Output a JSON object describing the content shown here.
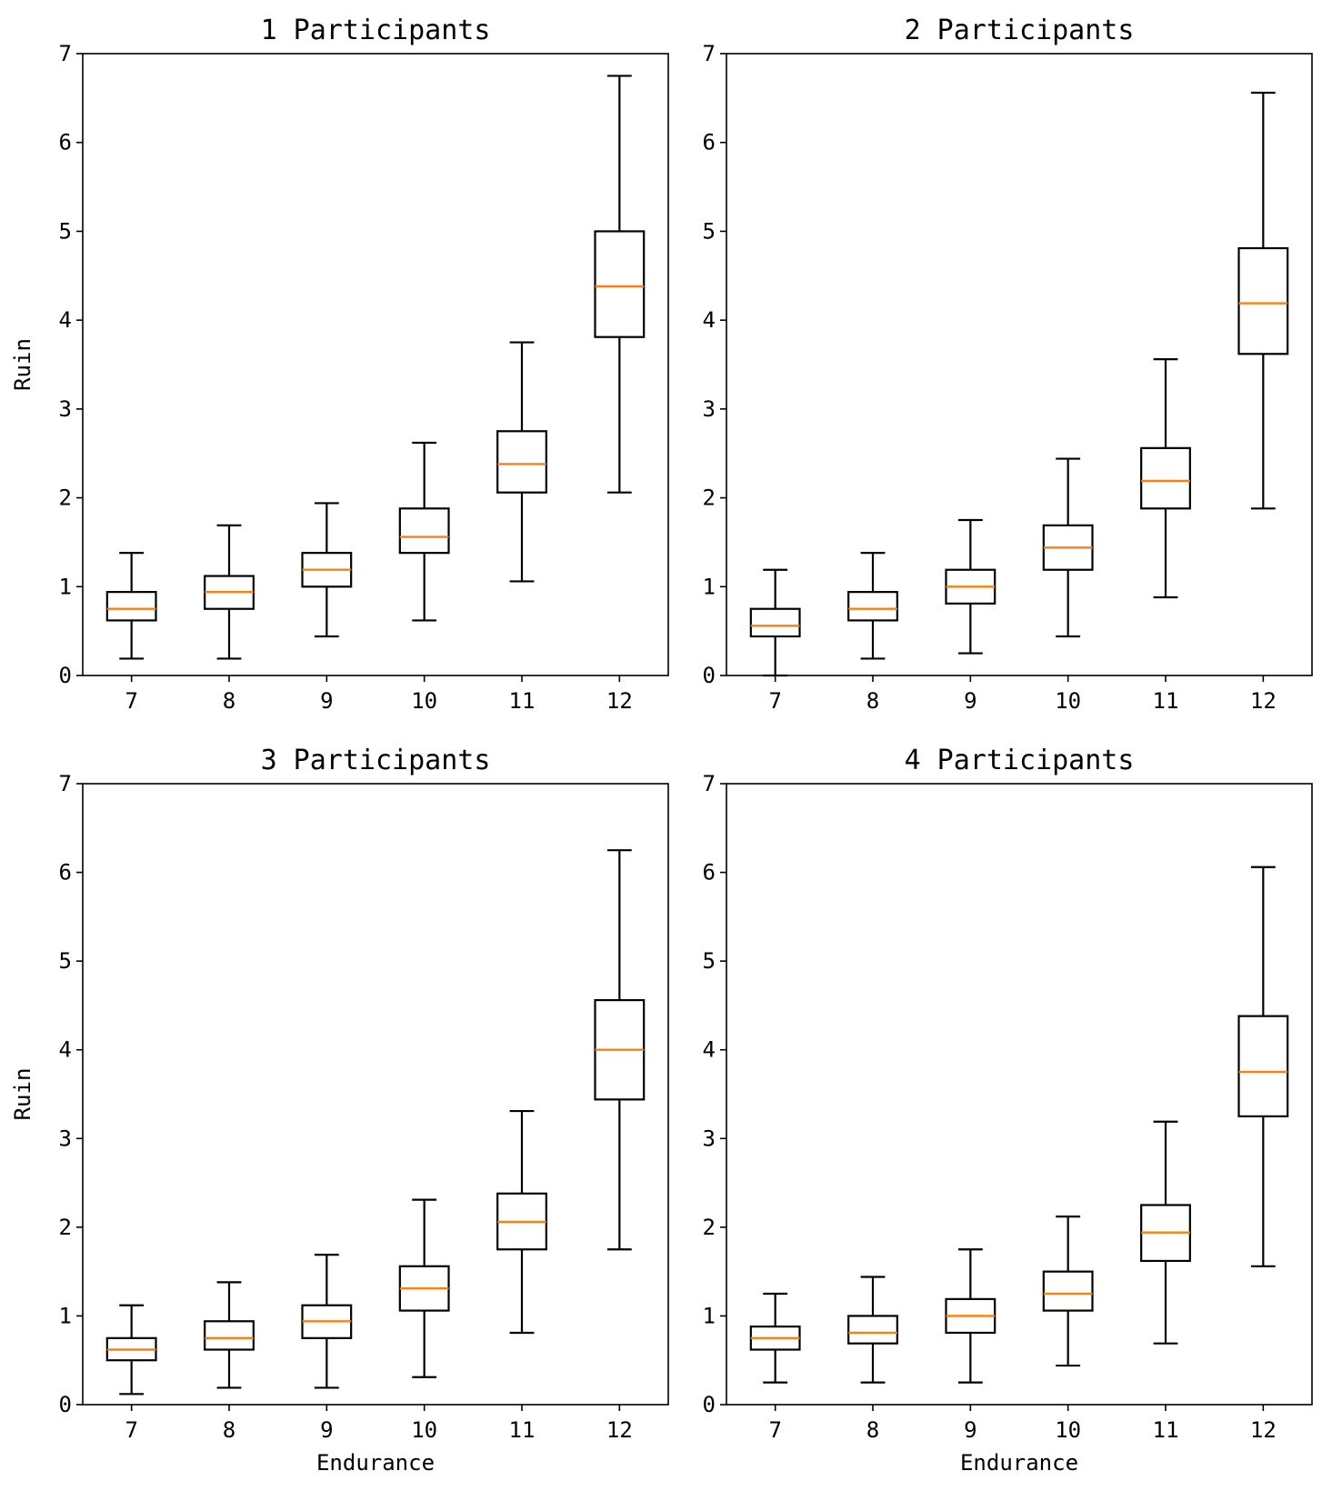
{
  "colors": {
    "box": "#000000",
    "median": "#ff7f0e",
    "background": "#ffffff"
  },
  "chart_data": [
    {
      "type": "box",
      "title": "1 Participants",
      "xlabel": "",
      "ylabel": "Ruin",
      "categories": [
        "7",
        "8",
        "9",
        "10",
        "11",
        "12"
      ],
      "ylim": [
        0,
        7
      ],
      "yticks": [
        "0",
        "1",
        "2",
        "3",
        "4",
        "5",
        "6",
        "7"
      ],
      "grid": false,
      "boxes": [
        {
          "whisker_low": 0.19,
          "q1": 0.62,
          "median": 0.75,
          "q3": 0.94,
          "whisker_high": 1.38
        },
        {
          "whisker_low": 0.19,
          "q1": 0.75,
          "median": 0.94,
          "q3": 1.12,
          "whisker_high": 1.69
        },
        {
          "whisker_low": 0.44,
          "q1": 1.0,
          "median": 1.19,
          "q3": 1.38,
          "whisker_high": 1.94
        },
        {
          "whisker_low": 0.62,
          "q1": 1.38,
          "median": 1.56,
          "q3": 1.88,
          "whisker_high": 2.62
        },
        {
          "whisker_low": 1.06,
          "q1": 2.06,
          "median": 2.38,
          "q3": 2.75,
          "whisker_high": 3.75
        },
        {
          "whisker_low": 2.06,
          "q1": 3.81,
          "median": 4.38,
          "q3": 5.0,
          "whisker_high": 6.75
        }
      ]
    },
    {
      "type": "box",
      "title": "2 Participants",
      "xlabel": "",
      "ylabel": "",
      "categories": [
        "7",
        "8",
        "9",
        "10",
        "11",
        "12"
      ],
      "ylim": [
        0,
        7
      ],
      "yticks": [
        "0",
        "1",
        "2",
        "3",
        "4",
        "5",
        "6",
        "7"
      ],
      "grid": false,
      "boxes": [
        {
          "whisker_low": 0.0,
          "q1": 0.44,
          "median": 0.56,
          "q3": 0.75,
          "whisker_high": 1.19
        },
        {
          "whisker_low": 0.19,
          "q1": 0.62,
          "median": 0.75,
          "q3": 0.94,
          "whisker_high": 1.38
        },
        {
          "whisker_low": 0.25,
          "q1": 0.81,
          "median": 1.0,
          "q3": 1.19,
          "whisker_high": 1.75
        },
        {
          "whisker_low": 0.44,
          "q1": 1.19,
          "median": 1.44,
          "q3": 1.69,
          "whisker_high": 2.44
        },
        {
          "whisker_low": 0.88,
          "q1": 1.88,
          "median": 2.19,
          "q3": 2.56,
          "whisker_high": 3.56
        },
        {
          "whisker_low": 1.88,
          "q1": 3.62,
          "median": 4.19,
          "q3": 4.81,
          "whisker_high": 6.56
        }
      ]
    },
    {
      "type": "box",
      "title": "3 Participants",
      "xlabel": "Endurance",
      "ylabel": "Ruin",
      "categories": [
        "7",
        "8",
        "9",
        "10",
        "11",
        "12"
      ],
      "ylim": [
        0,
        7
      ],
      "yticks": [
        "0",
        "1",
        "2",
        "3",
        "4",
        "5",
        "6",
        "7"
      ],
      "grid": false,
      "boxes": [
        {
          "whisker_low": 0.12,
          "q1": 0.5,
          "median": 0.62,
          "q3": 0.75,
          "whisker_high": 1.12
        },
        {
          "whisker_low": 0.19,
          "q1": 0.62,
          "median": 0.75,
          "q3": 0.94,
          "whisker_high": 1.38
        },
        {
          "whisker_low": 0.19,
          "q1": 0.75,
          "median": 0.94,
          "q3": 1.12,
          "whisker_high": 1.69
        },
        {
          "whisker_low": 0.31,
          "q1": 1.06,
          "median": 1.31,
          "q3": 1.56,
          "whisker_high": 2.31
        },
        {
          "whisker_low": 0.81,
          "q1": 1.75,
          "median": 2.06,
          "q3": 2.38,
          "whisker_high": 3.31
        },
        {
          "whisker_low": 1.75,
          "q1": 3.44,
          "median": 4.0,
          "q3": 4.56,
          "whisker_high": 6.25
        }
      ]
    },
    {
      "type": "box",
      "title": "4 Participants",
      "xlabel": "Endurance",
      "ylabel": "",
      "categories": [
        "7",
        "8",
        "9",
        "10",
        "11",
        "12"
      ],
      "ylim": [
        0,
        7
      ],
      "yticks": [
        "0",
        "1",
        "2",
        "3",
        "4",
        "5",
        "6",
        "7"
      ],
      "grid": false,
      "boxes": [
        {
          "whisker_low": 0.25,
          "q1": 0.62,
          "median": 0.75,
          "q3": 0.88,
          "whisker_high": 1.25
        },
        {
          "whisker_low": 0.25,
          "q1": 0.69,
          "median": 0.81,
          "q3": 1.0,
          "whisker_high": 1.44
        },
        {
          "whisker_low": 0.25,
          "q1": 0.81,
          "median": 1.0,
          "q3": 1.19,
          "whisker_high": 1.75
        },
        {
          "whisker_low": 0.44,
          "q1": 1.06,
          "median": 1.25,
          "q3": 1.5,
          "whisker_high": 2.12
        },
        {
          "whisker_low": 0.69,
          "q1": 1.62,
          "median": 1.94,
          "q3": 2.25,
          "whisker_high": 3.19
        },
        {
          "whisker_low": 1.56,
          "q1": 3.25,
          "median": 3.75,
          "q3": 4.38,
          "whisker_high": 6.06
        }
      ]
    }
  ]
}
